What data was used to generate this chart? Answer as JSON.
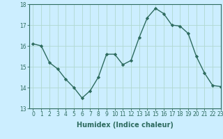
{
  "x": [
    0,
    1,
    2,
    3,
    4,
    5,
    6,
    7,
    8,
    9,
    10,
    11,
    12,
    13,
    14,
    15,
    16,
    17,
    18,
    19,
    20,
    21,
    22,
    23
  ],
  "y": [
    16.1,
    16.0,
    15.2,
    14.9,
    14.4,
    14.0,
    13.5,
    13.85,
    14.5,
    15.6,
    15.6,
    15.1,
    15.3,
    16.4,
    17.35,
    17.8,
    17.55,
    17.0,
    16.95,
    16.6,
    15.5,
    14.7,
    14.1,
    14.05
  ],
  "line_color": "#2d6b5e",
  "marker": "D",
  "marker_size": 2.2,
  "bg_color": "#cceeff",
  "grid_color": "#b0d8d0",
  "xlabel": "Humidex (Indice chaleur)",
  "ylim": [
    13,
    18
  ],
  "xlim": [
    -0.5,
    23
  ],
  "yticks": [
    13,
    14,
    15,
    16,
    17,
    18
  ],
  "xticks": [
    0,
    1,
    2,
    3,
    4,
    5,
    6,
    7,
    8,
    9,
    10,
    11,
    12,
    13,
    14,
    15,
    16,
    17,
    18,
    19,
    20,
    21,
    22,
    23
  ],
  "tick_fontsize": 5.5,
  "xlabel_fontsize": 7.0,
  "line_width": 1.0
}
